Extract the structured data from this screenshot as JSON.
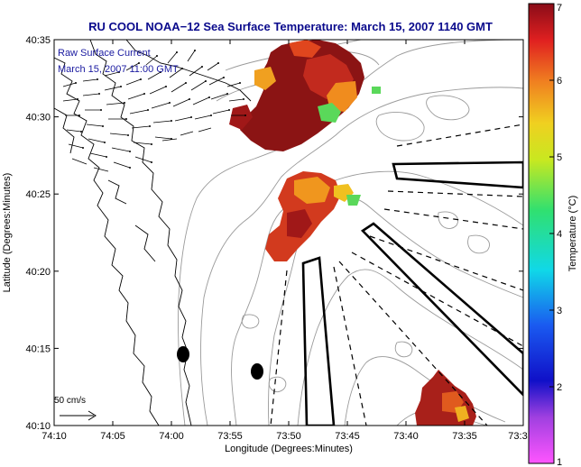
{
  "figure": {
    "title": "RU COOL  NOAA−12  Sea Surface Temperature:  March 15, 2007 1140 GMT",
    "xlabel": "Longitude (Degrees:Minutes)",
    "ylabel": "Latitude (Degrees:Minutes)",
    "x_ticks": [
      "74:10",
      "74:05",
      "74:00",
      "73:55",
      "73:50",
      "73:45",
      "73:40",
      "73:35",
      "73:3"
    ],
    "y_ticks": [
      "40:35",
      "40:30",
      "40:25",
      "40:20",
      "40:15",
      "40:10"
    ],
    "annotation_line1": "Raw Surface Current",
    "annotation_line2": "March 15, 2007 11:00 GMT",
    "vector_scale_label": "50 cm/s"
  },
  "colorbar": {
    "label": "Temperature (°C)",
    "ticks": [
      "7",
      "6",
      "5",
      "4",
      "3",
      "2",
      "1"
    ],
    "min": 1,
    "max": 7
  },
  "colors": {
    "title": "#0a0a8c",
    "land_lines": "#000000",
    "bathymetry": "#9a9a9a",
    "sst_hot": "#8b1414",
    "sst_mid": "#d2461e",
    "sst_warm": "#f08c1e",
    "sst_cool": "#3ccc5a"
  }
}
